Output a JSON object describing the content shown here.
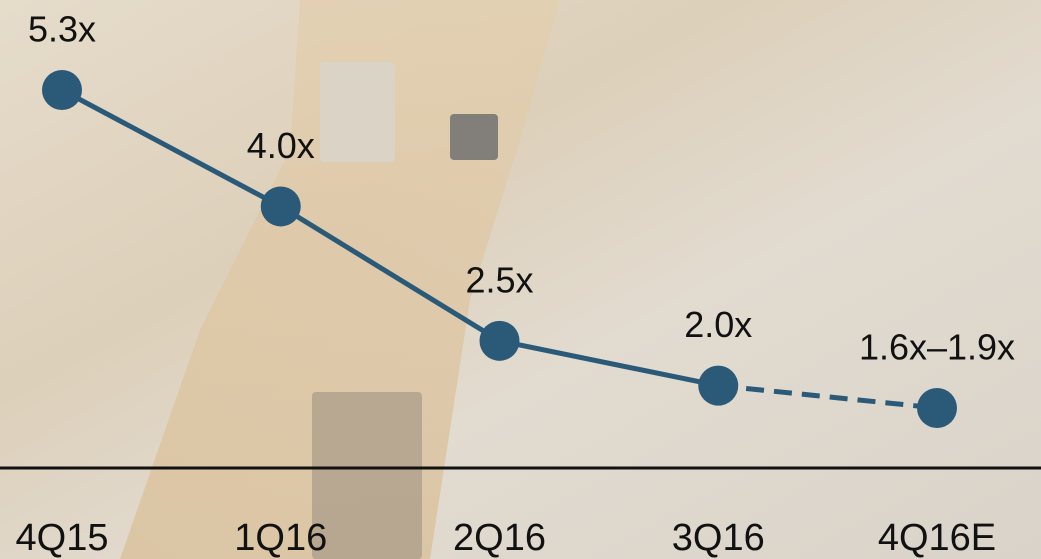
{
  "chart_data": {
    "type": "line",
    "categories": [
      "4Q15",
      "1Q16",
      "2Q16",
      "3Q16",
      "4Q16E"
    ],
    "values": [
      5.3,
      4.0,
      2.5,
      2.0,
      1.75
    ],
    "value_labels": [
      "5.3x",
      "4.0x",
      "2.5x",
      "2.0x",
      "1.6x–1.9x"
    ],
    "color": "#2b5a78"
  }
}
